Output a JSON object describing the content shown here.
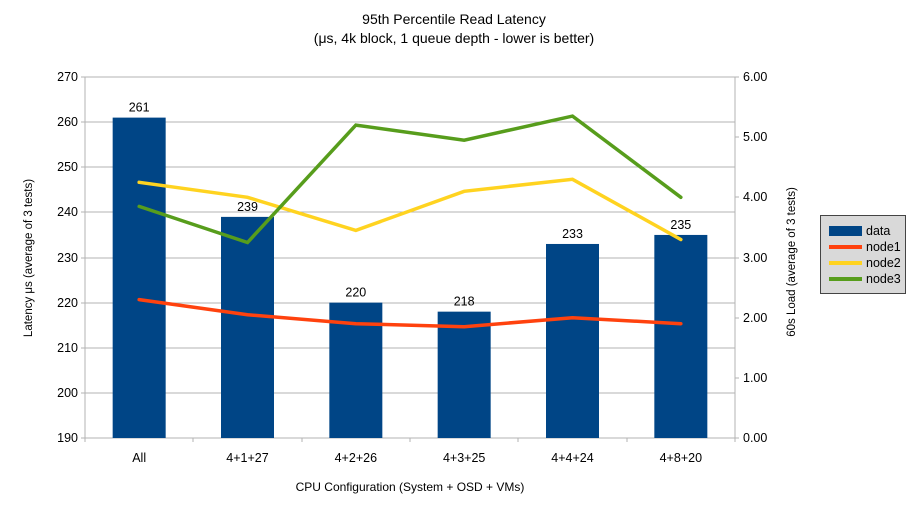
{
  "title": {
    "line1": "95th Percentile Read Latency",
    "line2": "(μs, 4k block, 1 queue depth - lower is better)"
  },
  "chart_data": {
    "type": "bar",
    "subtype": "combo bar + line, dual axis",
    "categories": [
      "All",
      "4+1+27",
      "4+2+26",
      "4+3+25",
      "4+4+24",
      "4+8+20"
    ],
    "bar_series": {
      "name": "data",
      "axis": "left",
      "color": "#004586",
      "values": [
        261,
        239,
        220,
        218,
        233,
        235
      ],
      "data_labels_visible": true
    },
    "line_series": [
      {
        "name": "node1",
        "axis": "right",
        "color": "#ff420e",
        "values": [
          2.3,
          2.05,
          1.9,
          1.85,
          2.0,
          1.9
        ]
      },
      {
        "name": "node2",
        "axis": "right",
        "color": "#ffd320",
        "values": [
          4.25,
          4.0,
          3.45,
          4.1,
          4.3,
          3.3
        ]
      },
      {
        "name": "node3",
        "axis": "right",
        "color": "#579d1c",
        "values": [
          3.85,
          3.25,
          5.2,
          4.95,
          5.35,
          4.0
        ]
      }
    ],
    "left_axis": {
      "title": "Latency μs (average of 3 tests)",
      "min": 190,
      "max": 270,
      "step": 10,
      "tick_labels": [
        "190",
        "200",
        "210",
        "220",
        "230",
        "240",
        "250",
        "260",
        "270"
      ]
    },
    "right_axis": {
      "title": "60s Load (average of 3 tests)",
      "min": 0,
      "max": 6,
      "step": 1,
      "tick_labels": [
        "0.00",
        "1.00",
        "2.00",
        "3.00",
        "4.00",
        "5.00",
        "6.00"
      ]
    },
    "x_axis": {
      "title": "CPU Configuration (System + OSD + VMs)"
    },
    "legend": {
      "position": "right",
      "items": [
        {
          "label": "data",
          "type": "bar",
          "color": "#004586"
        },
        {
          "label": "node1",
          "type": "line",
          "color": "#ff420e"
        },
        {
          "label": "node2",
          "type": "line",
          "color": "#ffd320"
        },
        {
          "label": "node3",
          "type": "line",
          "color": "#579d1c"
        }
      ]
    },
    "grid": "horizontal",
    "colors": {
      "background": "#ffffff",
      "gridline": "#b3b3b3",
      "axis_line": "#b3b3b3",
      "text": "#000000",
      "legend_bg": "#d9d9d9"
    }
  }
}
